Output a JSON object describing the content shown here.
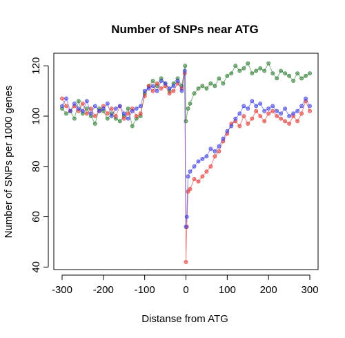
{
  "chart_data": {
    "type": "line",
    "title": "Number of SNPs near ATG",
    "xlabel": "Distanse from ATG",
    "ylabel": "Number of SNPs per 1000 genes",
    "xlim": [
      -320,
      320
    ],
    "ylim": [
      39,
      125
    ],
    "xticks": [
      "-300",
      "-200",
      "-100",
      "0",
      "100",
      "200",
      "300"
    ],
    "yticks": [
      "40",
      "60",
      "80",
      "100",
      "120"
    ],
    "grid": false,
    "legend": "none",
    "series": [
      {
        "color": "#2e7d32",
        "x": [
          -300,
          -290,
          -280,
          -270,
          -260,
          -250,
          -240,
          -230,
          -220,
          -210,
          -200,
          -190,
          -180,
          -170,
          -160,
          -150,
          -140,
          -130,
          -120,
          -110,
          -100,
          -90,
          -80,
          -70,
          -60,
          -50,
          -40,
          -30,
          -20,
          -10,
          -2,
          0,
          5,
          10,
          20,
          30,
          40,
          50,
          60,
          70,
          80,
          90,
          100,
          110,
          120,
          130,
          140,
          150,
          160,
          170,
          180,
          190,
          200,
          210,
          220,
          230,
          240,
          250,
          260,
          270,
          280,
          290,
          300
        ],
        "y": [
          103,
          101,
          102,
          99,
          106,
          101,
          103,
          100,
          97,
          103,
          102,
          99,
          101,
          99,
          98,
          100,
          103,
          96,
          99,
          100,
          109,
          112,
          114,
          112,
          115,
          113,
          110,
          113,
          115,
          112,
          120,
          98,
          103,
          105,
          109,
          111,
          112,
          111,
          113,
          112,
          115,
          113,
          116,
          117,
          120,
          118,
          119,
          121,
          117,
          118,
          119,
          118,
          121,
          117,
          115,
          118,
          117,
          116,
          114,
          117,
          115,
          116,
          117
        ]
      },
      {
        "color": "#e53935",
        "x": [
          -300,
          -290,
          -280,
          -270,
          -260,
          -250,
          -240,
          -230,
          -220,
          -210,
          -200,
          -190,
          -180,
          -170,
          -160,
          -150,
          -140,
          -130,
          -120,
          -110,
          -100,
          -90,
          -80,
          -70,
          -60,
          -50,
          -40,
          -30,
          -20,
          -10,
          -3,
          0,
          2,
          5,
          10,
          20,
          30,
          40,
          50,
          60,
          70,
          80,
          90,
          100,
          110,
          120,
          130,
          140,
          150,
          160,
          170,
          180,
          190,
          200,
          210,
          220,
          230,
          240,
          250,
          260,
          270,
          280,
          290,
          300
        ],
        "y": [
          107,
          104,
          102,
          104,
          102,
          105,
          101,
          103,
          100,
          102,
          104,
          101,
          103,
          100,
          104,
          99,
          101,
          103,
          100,
          101,
          108,
          112,
          110,
          113,
          111,
          112,
          109,
          110,
          113,
          111,
          117,
          42,
          56,
          70,
          71,
          75,
          74,
          76,
          78,
          80,
          84,
          86,
          90,
          93,
          97,
          98,
          96,
          100,
          97,
          99,
          102,
          100,
          98,
          101,
          102,
          100,
          99,
          98,
          97,
          100,
          98,
          101,
          106,
          102
        ]
      },
      {
        "color": "#3f3fe6",
        "x": [
          -300,
          -290,
          -280,
          -270,
          -260,
          -250,
          -240,
          -230,
          -220,
          -210,
          -200,
          -190,
          -180,
          -170,
          -160,
          -150,
          -140,
          -130,
          -120,
          -110,
          -100,
          -90,
          -80,
          -70,
          -60,
          -50,
          -40,
          -30,
          -20,
          -10,
          -3,
          0,
          2,
          5,
          10,
          20,
          30,
          40,
          50,
          60,
          70,
          80,
          90,
          100,
          110,
          120,
          130,
          140,
          150,
          160,
          170,
          180,
          190,
          200,
          210,
          220,
          230,
          240,
          250,
          260,
          270,
          280,
          290,
          300
        ],
        "y": [
          104,
          107,
          102,
          105,
          103,
          102,
          106,
          101,
          104,
          102,
          103,
          105,
          100,
          103,
          104,
          101,
          99,
          102,
          103,
          104,
          110,
          111,
          112,
          110,
          114,
          113,
          111,
          112,
          114,
          110,
          118,
          56,
          60,
          76,
          78,
          80,
          82,
          83,
          84,
          87,
          86,
          88,
          91,
          94,
          96,
          99,
          101,
          104,
          103,
          106,
          104,
          105,
          102,
          103,
          104,
          102,
          101,
          103,
          100,
          101,
          102,
          104,
          107,
          104
        ]
      }
    ]
  }
}
